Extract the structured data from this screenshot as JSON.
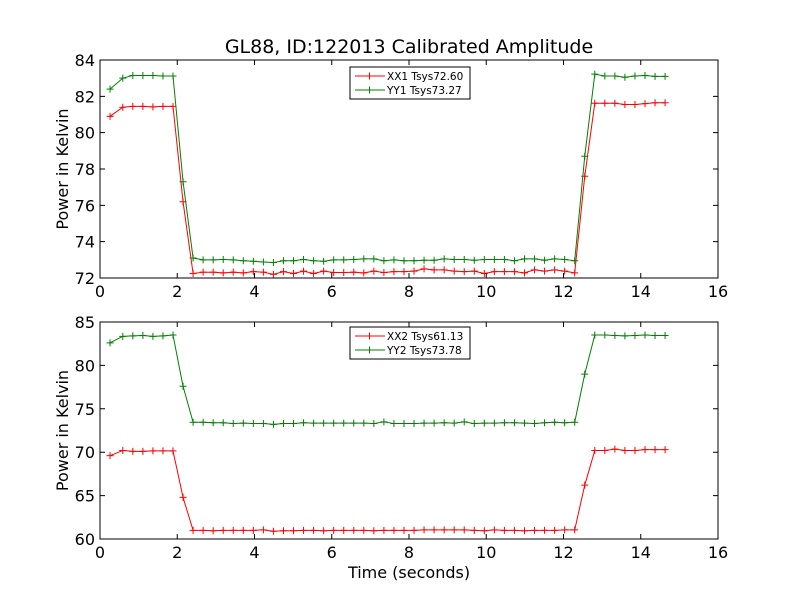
{
  "chart_data": [
    {
      "type": "line",
      "title": "GL88, ID:122013 Calibrated Amplitude",
      "xlabel": "",
      "ylabel": "Power in Kelvin",
      "xlim": [
        0,
        16
      ],
      "ylim": [
        72,
        84
      ],
      "xticks": [
        "0",
        "2",
        "4",
        "6",
        "8",
        "10",
        "12",
        "14",
        "16"
      ],
      "yticks": [
        "72",
        "74",
        "76",
        "78",
        "80",
        "82",
        "84"
      ],
      "legend_position": "top-center",
      "grid": false,
      "x": [
        0.26,
        0.59,
        0.85,
        1.11,
        1.37,
        1.63,
        1.89,
        2.15,
        2.41,
        2.67,
        2.93,
        3.19,
        3.45,
        3.71,
        3.97,
        4.23,
        4.49,
        4.75,
        5.01,
        5.27,
        5.53,
        5.79,
        6.05,
        6.31,
        6.57,
        6.83,
        7.09,
        7.35,
        7.61,
        7.87,
        8.13,
        8.39,
        8.65,
        8.91,
        9.17,
        9.43,
        9.69,
        9.95,
        10.21,
        10.47,
        10.73,
        10.99,
        11.25,
        11.51,
        11.77,
        12.03,
        12.29,
        12.55,
        12.81,
        13.07,
        13.33,
        13.59,
        13.85,
        14.11,
        14.37,
        14.63
      ],
      "series": [
        {
          "name": "XX1 Tsys72.60",
          "color": "#ff0000",
          "values": [
            80.9,
            81.4,
            81.45,
            81.45,
            81.42,
            81.45,
            81.45,
            76.2,
            72.25,
            72.32,
            72.32,
            72.28,
            72.32,
            72.28,
            72.35,
            72.32,
            72.2,
            72.35,
            72.25,
            72.38,
            72.25,
            72.38,
            72.3,
            72.3,
            72.32,
            72.28,
            72.38,
            72.3,
            72.35,
            72.35,
            72.38,
            72.5,
            72.45,
            72.45,
            72.38,
            72.35,
            72.38,
            72.25,
            72.35,
            72.35,
            72.35,
            72.28,
            72.45,
            72.38,
            72.45,
            72.38,
            72.28,
            77.6,
            81.62,
            81.62,
            81.62,
            81.55,
            81.55,
            81.6,
            81.65,
            81.65
          ]
        },
        {
          "name": "YY1 Tsys73.27",
          "color": "#008000",
          "values": [
            82.4,
            83.0,
            83.15,
            83.15,
            83.15,
            83.12,
            83.12,
            77.3,
            73.1,
            73.0,
            73.0,
            73.02,
            73.0,
            72.95,
            72.92,
            72.88,
            72.85,
            72.95,
            72.95,
            73.02,
            72.95,
            72.92,
            73.0,
            73.0,
            73.02,
            73.05,
            73.05,
            72.95,
            73.0,
            72.95,
            72.95,
            72.98,
            72.98,
            73.05,
            73.02,
            73.02,
            72.98,
            73.02,
            73.02,
            73.02,
            72.95,
            73.05,
            73.05,
            72.98,
            73.05,
            73.02,
            72.95,
            78.7,
            83.22,
            83.12,
            83.12,
            83.05,
            83.12,
            83.15,
            83.1,
            83.1
          ]
        }
      ]
    },
    {
      "type": "line",
      "title": "",
      "xlabel": "Time (seconds)",
      "ylabel": "Power in Kelvin",
      "xlim": [
        0,
        16
      ],
      "ylim": [
        60,
        85
      ],
      "xticks": [
        "0",
        "2",
        "4",
        "6",
        "8",
        "10",
        "12",
        "14",
        "16"
      ],
      "yticks": [
        "60",
        "65",
        "70",
        "75",
        "80",
        "85"
      ],
      "legend_position": "top-center",
      "grid": false,
      "x": [
        0.26,
        0.59,
        0.85,
        1.11,
        1.37,
        1.63,
        1.89,
        2.15,
        2.41,
        2.67,
        2.93,
        3.19,
        3.45,
        3.71,
        3.97,
        4.23,
        4.49,
        4.75,
        5.01,
        5.27,
        5.53,
        5.79,
        6.05,
        6.31,
        6.57,
        6.83,
        7.09,
        7.35,
        7.61,
        7.87,
        8.13,
        8.39,
        8.65,
        8.91,
        9.17,
        9.43,
        9.69,
        9.95,
        10.21,
        10.47,
        10.73,
        10.99,
        11.25,
        11.51,
        11.77,
        12.03,
        12.29,
        12.55,
        12.81,
        13.07,
        13.33,
        13.59,
        13.85,
        14.11,
        14.37,
        14.63
      ],
      "series": [
        {
          "name": "XX2 Tsys61.13",
          "color": "#ff0000",
          "values": [
            69.6,
            70.2,
            70.1,
            70.1,
            70.15,
            70.15,
            70.15,
            64.8,
            61.0,
            61.0,
            60.95,
            61.0,
            61.0,
            61.0,
            61.0,
            61.05,
            60.9,
            60.95,
            60.95,
            61.0,
            61.0,
            60.95,
            61.0,
            61.0,
            61.0,
            61.0,
            60.95,
            61.0,
            61.0,
            61.0,
            61.0,
            61.05,
            61.05,
            61.05,
            61.05,
            61.05,
            61.0,
            60.95,
            61.05,
            61.0,
            61.0,
            60.95,
            61.0,
            61.0,
            61.0,
            61.05,
            61.05,
            66.2,
            70.2,
            70.2,
            70.35,
            70.2,
            70.2,
            70.3,
            70.3,
            70.3
          ]
        },
        {
          "name": "YY2 Tsys73.78",
          "color": "#008000",
          "values": [
            82.6,
            83.35,
            83.4,
            83.45,
            83.35,
            83.4,
            83.5,
            77.6,
            73.45,
            73.45,
            73.4,
            73.4,
            73.3,
            73.35,
            73.3,
            73.3,
            73.2,
            73.3,
            73.3,
            73.4,
            73.35,
            73.35,
            73.35,
            73.35,
            73.35,
            73.35,
            73.3,
            73.5,
            73.3,
            73.3,
            73.3,
            73.35,
            73.35,
            73.4,
            73.35,
            73.5,
            73.3,
            73.35,
            73.35,
            73.4,
            73.4,
            73.35,
            73.3,
            73.4,
            73.45,
            73.4,
            73.45,
            79.0,
            83.5,
            83.5,
            83.45,
            83.4,
            83.45,
            83.5,
            83.45,
            83.45
          ]
        }
      ]
    }
  ]
}
